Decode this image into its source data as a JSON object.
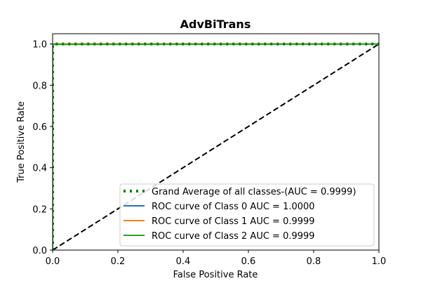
{
  "chart_data": {
    "type": "line",
    "title": "AdvBiTrans",
    "xlabel": "False Positive Rate",
    "ylabel": "True Positive Rate",
    "xlim": [
      0.0,
      1.0
    ],
    "ylim": [
      0.0,
      1.05
    ],
    "xticks": [
      "0.0",
      "0.2",
      "0.4",
      "0.6",
      "0.8",
      "1.0"
    ],
    "yticks": [
      "0.0",
      "0.2",
      "0.4",
      "0.6",
      "0.8",
      "1.0"
    ],
    "xtick_values": [
      0.0,
      0.2,
      0.4,
      0.6,
      0.8,
      1.0
    ],
    "ytick_values": [
      0.0,
      0.2,
      0.4,
      0.6,
      0.8,
      1.0
    ],
    "grid": false,
    "legend_position": "lower-right",
    "series": [
      {
        "name": "Grand Average of all classes-(AUC = 0.9999)",
        "color": "#008000",
        "style": "dotted",
        "x": [
          0.0,
          0.0,
          0.002,
          1.0
        ],
        "y": [
          0.0,
          0.996,
          1.0,
          1.0
        ]
      },
      {
        "name": "ROC curve of Class 0 AUC = 1.0000",
        "color": "#1f77b4",
        "style": "solid",
        "x": [
          0.0,
          0.0,
          1.0
        ],
        "y": [
          0.0,
          1.0,
          1.0
        ]
      },
      {
        "name": "ROC curve of Class 1 AUC = 0.9999",
        "color": "#ff7f0e",
        "style": "solid",
        "x": [
          0.0,
          0.0,
          0.002,
          1.0
        ],
        "y": [
          0.0,
          0.996,
          1.0,
          1.0
        ]
      },
      {
        "name": "ROC curve of Class 2 AUC = 0.9999",
        "color": "#2ca02c",
        "style": "solid",
        "x": [
          0.0,
          0.0,
          0.002,
          1.0
        ],
        "y": [
          0.0,
          0.995,
          0.998,
          1.0
        ]
      }
    ],
    "reference_line": {
      "color": "#000000",
      "style": "dashed",
      "x": [
        0.0,
        1.0
      ],
      "y": [
        0.0,
        1.0
      ]
    }
  }
}
